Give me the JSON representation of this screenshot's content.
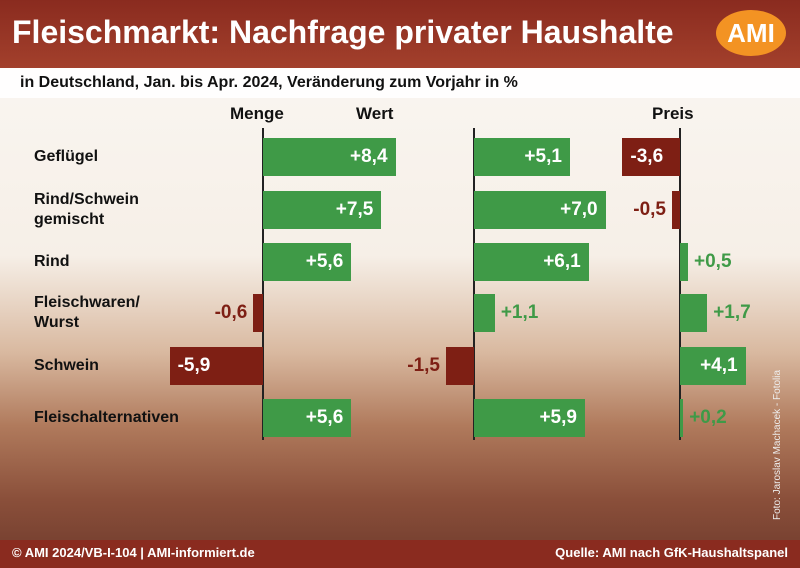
{
  "chart_data": {
    "type": "bar",
    "title": "Fleischmarkt: Nachfrage privater Haushalte",
    "logo": "AMI",
    "subtitle": "in Deutschland, Jan. bis Apr. 2024, Veränderung zum Vorjahr in %",
    "categories": [
      "Geflügel",
      "Rind/Schwein\ngemischt",
      "Rind",
      "Fleischwaren/\nWurst",
      "Schwein",
      "Fleischalternativen"
    ],
    "positive_color": "#3f9a47",
    "negative_color": "#7e1f14",
    "series": [
      {
        "name": "Menge",
        "xlim": [
          -6,
          9
        ],
        "values": [
          8.4,
          7.5,
          5.6,
          -0.6,
          -5.9,
          5.6
        ],
        "value_labels": [
          "+8,4",
          "+7,5",
          "+5,6",
          "-0,6",
          "-5,9",
          "+5,6"
        ]
      },
      {
        "name": "Wert",
        "xlim": [
          -1.5,
          7.5
        ],
        "values": [
          5.1,
          7.0,
          6.1,
          1.1,
          -1.5,
          5.9
        ],
        "value_labels": [
          "+5,1",
          "+7,0",
          "+6,1",
          "+1,1",
          "-1,5",
          "+5,9"
        ]
      },
      {
        "name": "Preis",
        "xlim": [
          -4,
          5
        ],
        "values": [
          -3.6,
          -0.5,
          0.5,
          1.7,
          4.1,
          0.2
        ],
        "value_labels": [
          "-3,6",
          "-0,5",
          "+0,5",
          "+1,7",
          "+4,1",
          "+0,2"
        ]
      }
    ],
    "footer_left": "© AMI 2024/VB-I-104 | AMI-informiert.de",
    "footer_right": "Quelle: AMI nach GfK-Haushaltspanel",
    "photo_credit": "Foto: Jaroslav Machacek - Fotolia"
  }
}
